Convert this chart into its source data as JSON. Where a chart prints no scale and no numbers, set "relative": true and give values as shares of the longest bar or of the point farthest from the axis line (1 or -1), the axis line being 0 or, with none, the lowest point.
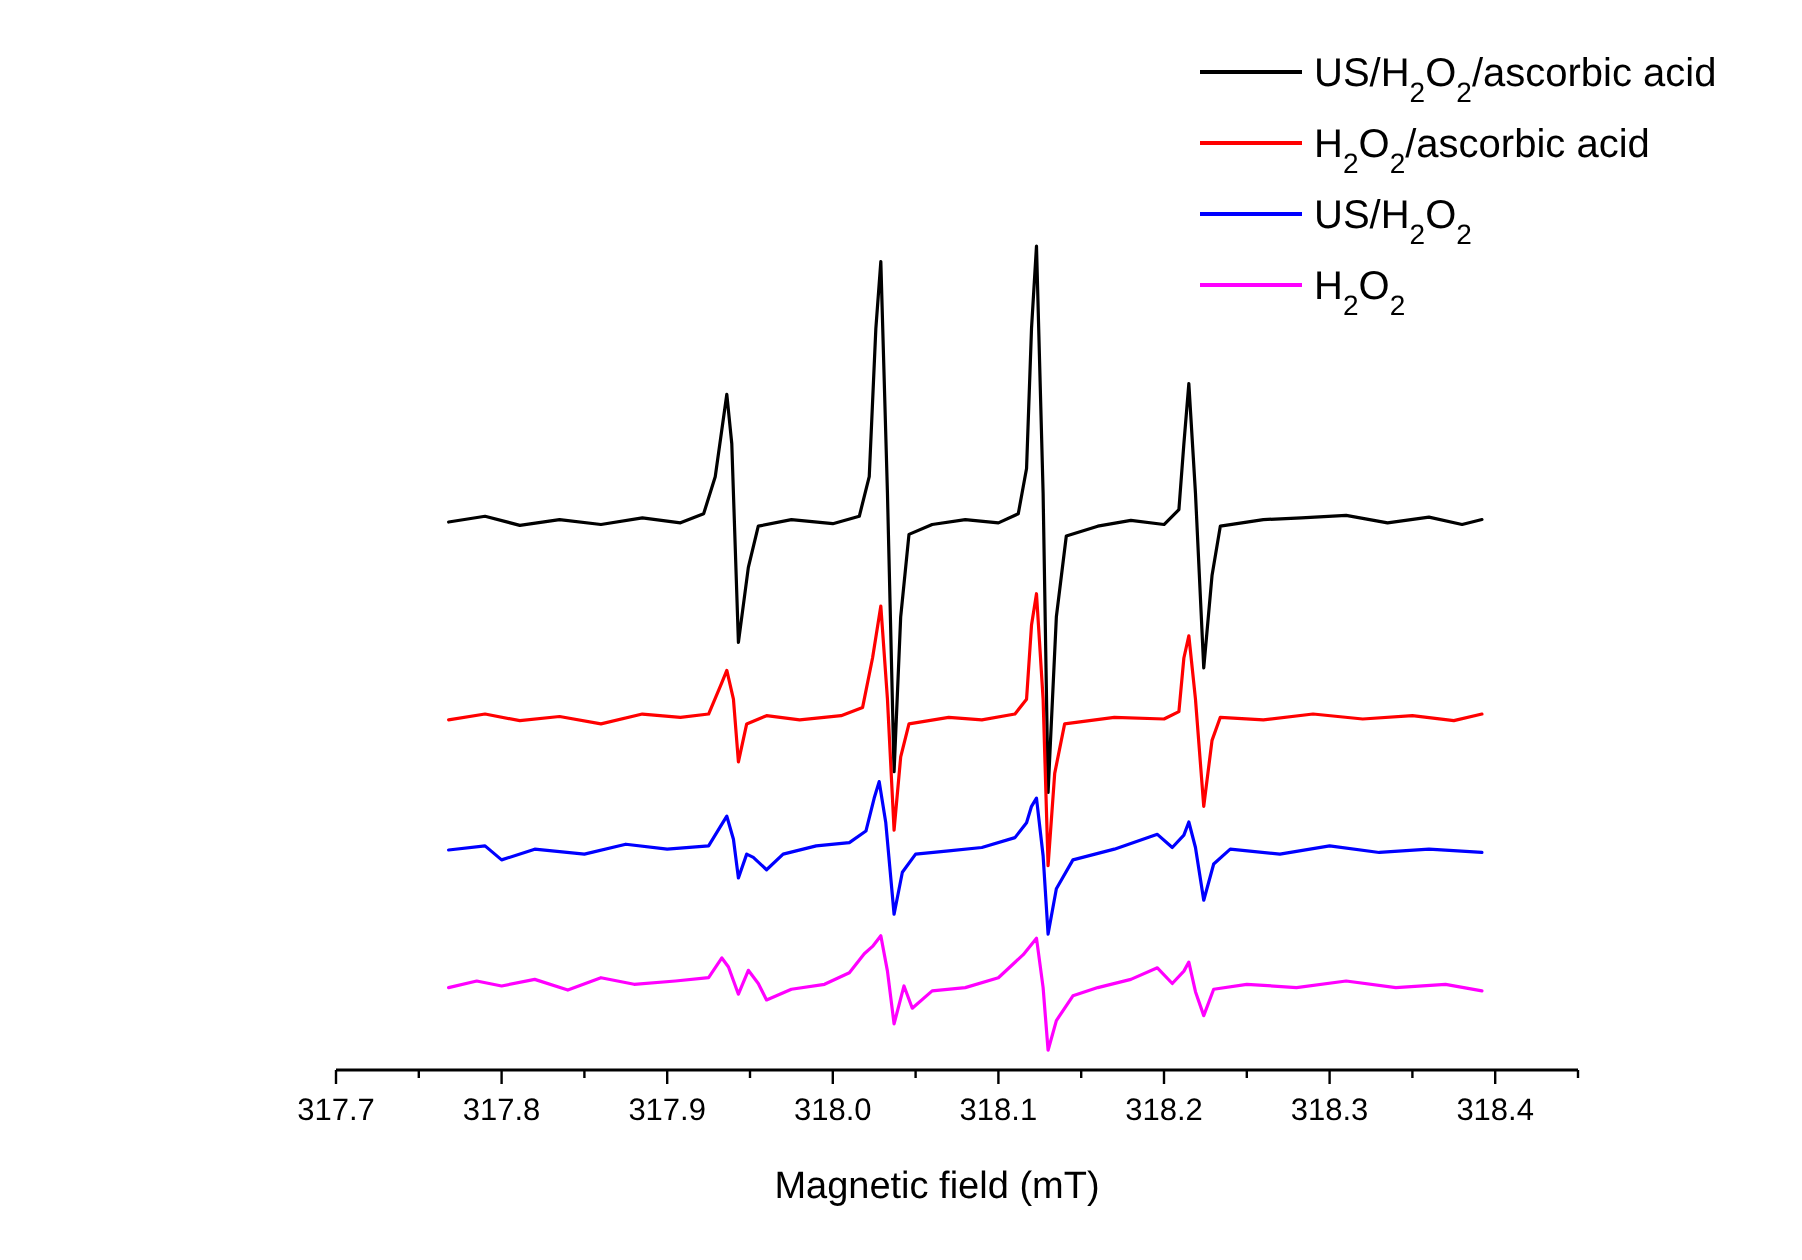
{
  "chart_data": {
    "type": "line",
    "relative": true,
    "xlabel": "Magnetic field (mT)",
    "xlim": [
      317.7,
      318.45
    ],
    "xticks": [
      317.7,
      {
        "value": 317.75,
        "label": null
      },
      317.8,
      {
        "value": 317.85,
        "label": null
      },
      317.9,
      {
        "value": 317.95,
        "label": null
      },
      {
        "value": 318,
        "label": "318.0"
      },
      {
        "value": 318.05,
        "label": null
      },
      318.1,
      {
        "value": 318.15,
        "label": null
      },
      318.2,
      {
        "value": 318.25,
        "label": null
      },
      318.3,
      {
        "value": 318.35,
        "label": null
      },
      318.4,
      {
        "value": 318.45,
        "label": null
      }
    ],
    "legend": "top right",
    "marker": "none",
    "line_style": "solid",
    "grid": false,
    "series": [
      {
        "name": "US/H$_{2}$O$_{2}$/ascorbic acid",
        "color": "#000000",
        "x": [
          317.768,
          317.79,
          317.811,
          317.835,
          317.86,
          317.885,
          317.908,
          317.922,
          317.929,
          317.936,
          317.939,
          317.943,
          317.949,
          317.955,
          317.975,
          318.0,
          318.016,
          318.022,
          318.026,
          318.029,
          318.033,
          318.037,
          318.041,
          318.046,
          318.06,
          318.08,
          318.1,
          318.112,
          318.117,
          318.12,
          318.123,
          318.127,
          318.13,
          318.135,
          318.141,
          318.16,
          318.18,
          318.2,
          318.209,
          318.212,
          318.215,
          318.219,
          318.224,
          318.229,
          318.234,
          318.26,
          318.283,
          318.31,
          318.335,
          318.36,
          318.38,
          318.392
        ],
        "values": [
          0.665,
          0.672,
          0.661,
          0.668,
          0.662,
          0.67,
          0.664,
          0.675,
          0.72,
          0.82,
          0.76,
          0.519,
          0.61,
          0.66,
          0.668,
          0.663,
          0.672,
          0.72,
          0.9,
          0.981,
          0.7,
          0.362,
          0.55,
          0.65,
          0.662,
          0.668,
          0.664,
          0.675,
          0.73,
          0.9,
          1.0,
          0.7,
          0.337,
          0.55,
          0.648,
          0.66,
          0.667,
          0.662,
          0.68,
          0.76,
          0.833,
          0.7,
          0.488,
          0.6,
          0.66,
          0.668,
          0.67,
          0.673,
          0.664,
          0.671,
          0.662,
          0.668
        ]
      },
      {
        "name": "H$_{2}$O$_{2}$/ascorbic acid",
        "color": "#ff0000",
        "x": [
          317.768,
          317.79,
          317.811,
          317.835,
          317.86,
          317.885,
          317.908,
          317.925,
          317.933,
          317.936,
          317.94,
          317.943,
          317.948,
          317.96,
          317.98,
          318.005,
          318.018,
          318.024,
          318.029,
          318.033,
          318.037,
          318.041,
          318.046,
          318.07,
          318.09,
          318.11,
          318.117,
          318.12,
          318.123,
          318.127,
          318.13,
          318.134,
          318.14,
          318.17,
          318.2,
          318.209,
          318.212,
          318.215,
          318.219,
          318.224,
          318.229,
          318.234,
          318.26,
          318.29,
          318.32,
          318.35,
          318.375,
          318.392
        ],
        "values": [
          0.425,
          0.432,
          0.424,
          0.429,
          0.42,
          0.432,
          0.428,
          0.432,
          0.47,
          0.485,
          0.45,
          0.374,
          0.42,
          0.43,
          0.425,
          0.43,
          0.44,
          0.5,
          0.563,
          0.45,
          0.291,
          0.38,
          0.42,
          0.428,
          0.425,
          0.432,
          0.45,
          0.54,
          0.578,
          0.45,
          0.248,
          0.36,
          0.42,
          0.428,
          0.426,
          0.435,
          0.5,
          0.527,
          0.45,
          0.32,
          0.4,
          0.428,
          0.425,
          0.432,
          0.426,
          0.43,
          0.424,
          0.432
        ]
      },
      {
        "name": "US/H$_{2}$O$_{2}$",
        "color": "#0000ff",
        "x": [
          317.768,
          317.79,
          317.8,
          317.82,
          317.85,
          317.875,
          317.9,
          317.925,
          317.932,
          317.936,
          317.94,
          317.943,
          317.948,
          317.952,
          317.96,
          317.97,
          317.99,
          318.01,
          318.02,
          318.025,
          318.028,
          318.032,
          318.037,
          318.042,
          318.05,
          318.07,
          318.09,
          318.11,
          318.117,
          318.12,
          318.123,
          318.127,
          318.13,
          318.135,
          318.145,
          318.17,
          318.196,
          318.205,
          318.212,
          318.215,
          318.219,
          318.224,
          318.23,
          318.24,
          318.27,
          318.3,
          318.33,
          318.36,
          318.392
        ],
        "values": [
          0.267,
          0.272,
          0.255,
          0.268,
          0.262,
          0.274,
          0.268,
          0.272,
          0.295,
          0.308,
          0.28,
          0.233,
          0.262,
          0.258,
          0.243,
          0.262,
          0.272,
          0.276,
          0.29,
          0.33,
          0.35,
          0.3,
          0.189,
          0.24,
          0.262,
          0.266,
          0.27,
          0.282,
          0.3,
          0.32,
          0.33,
          0.26,
          0.165,
          0.22,
          0.255,
          0.268,
          0.286,
          0.27,
          0.285,
          0.301,
          0.27,
          0.206,
          0.25,
          0.268,
          0.262,
          0.272,
          0.264,
          0.268,
          0.264
        ]
      },
      {
        "name": "H$_{2}$O$_{2}$",
        "color": "#ff00ff",
        "x": [
          317.768,
          317.785,
          317.8,
          317.82,
          317.84,
          317.86,
          317.88,
          317.905,
          317.925,
          317.933,
          317.937,
          317.943,
          317.949,
          317.955,
          317.96,
          317.975,
          317.995,
          318.01,
          318.019,
          318.024,
          318.029,
          318.033,
          318.037,
          318.043,
          318.048,
          318.06,
          318.08,
          318.1,
          318.115,
          318.123,
          318.127,
          318.13,
          318.135,
          318.145,
          318.16,
          318.18,
          318.196,
          318.205,
          318.212,
          318.215,
          318.219,
          318.224,
          318.23,
          318.25,
          318.28,
          318.31,
          318.34,
          318.37,
          318.392
        ],
        "values": [
          0.1,
          0.108,
          0.102,
          0.11,
          0.097,
          0.112,
          0.104,
          0.108,
          0.112,
          0.136,
          0.125,
          0.092,
          0.121,
          0.105,
          0.085,
          0.098,
          0.104,
          0.118,
          0.141,
          0.15,
          0.163,
          0.12,
          0.056,
          0.102,
          0.075,
          0.096,
          0.1,
          0.112,
          0.14,
          0.16,
          0.1,
          0.024,
          0.06,
          0.09,
          0.1,
          0.11,
          0.124,
          0.105,
          0.12,
          0.131,
          0.095,
          0.066,
          0.098,
          0.104,
          0.1,
          0.108,
          0.1,
          0.104,
          0.096
        ]
      }
    ]
  }
}
